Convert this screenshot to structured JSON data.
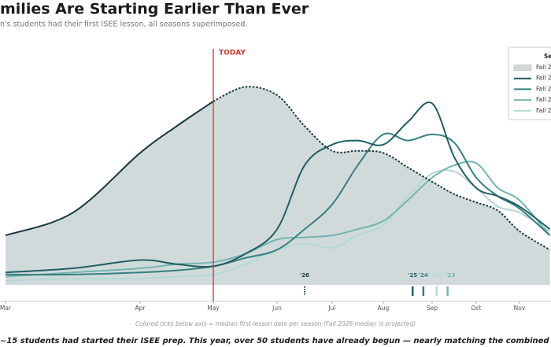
{
  "chart_data": {
    "type": "line",
    "title": "milies Are Starting Earlier Than Ever",
    "subtitle": "n's students had their first ISEE lesson, all seasons superimposed.",
    "footnote": "Colored ticks below axis = median first-lesson date per season  (Fall 2026 median is projected)",
    "caption": "~15 students had started their ISEE prep. This year, over 50 students have already begun — nearly matching the combined early-sta",
    "today": {
      "label": "TODAY",
      "x": 2
    },
    "legend_title": "Se",
    "legend_position": "upper right",
    "x": [
      0,
      0.5,
      1,
      1.5,
      2,
      2.5,
      3,
      3.5,
      4,
      4.5,
      5,
      5.5,
      6,
      6.5,
      7,
      7.5,
      8,
      8.7
    ],
    "xlim": [
      0,
      8.7
    ],
    "xticks": [
      {
        "value": 0,
        "label": "Mar"
      },
      {
        "value": 1,
        "label": "Apr"
      },
      {
        "value": 2,
        "label": "May"
      },
      {
        "value": 3,
        "label": "Jun"
      },
      {
        "value": 4,
        "label": "Jul"
      },
      {
        "value": 5,
        "label": "Aug"
      },
      {
        "value": 6,
        "label": "Sep"
      },
      {
        "value": 7,
        "label": "Oct"
      },
      {
        "value": 8,
        "label": "Nov"
      }
    ],
    "ylim": [
      0,
      100
    ],
    "series": [
      {
        "name": "Fall 2",
        "color": "#17373c",
        "fill": "#d1dadb",
        "values": [
          24,
          35,
          64,
          77,
          89,
          96,
          92,
          77,
          65,
          65,
          64,
          57,
          50,
          44,
          40,
          36,
          26,
          17
        ],
        "median": 3.5,
        "median_label": "'26"
      },
      {
        "name": "Fall 2",
        "color": "#1f5f63",
        "values": [
          6,
          8,
          12,
          10,
          9,
          15,
          27,
          58,
          68,
          70,
          68,
          79,
          88,
          62,
          47,
          43,
          38,
          27
        ],
        "median": 5.6,
        "median_label": "'25"
      },
      {
        "name": "Fall 2",
        "color": "#35807f",
        "values": [
          5,
          5,
          6,
          7,
          9,
          13,
          17,
          27,
          39,
          58,
          73,
          70,
          73,
          69,
          52,
          43,
          37,
          24
        ],
        "median": 5.82,
        "median_label": "'24"
      },
      {
        "name": "Fall 2",
        "color": "#72b5b0",
        "values": [
          4,
          6,
          8,
          10,
          11,
          15,
          22,
          23,
          24,
          27,
          31,
          41,
          52,
          58,
          59,
          47,
          41,
          24
        ],
        "median": 6.35,
        "median_label": "'23"
      },
      {
        "name": "Fall 2",
        "color": "#b3d8d5",
        "values": [
          2,
          3,
          3,
          4,
          5,
          10,
          17,
          20,
          18,
          24,
          29,
          43,
          54,
          55,
          47,
          38,
          35,
          26
        ],
        "median": 6.1,
        "median_label": "'22"
      }
    ]
  }
}
